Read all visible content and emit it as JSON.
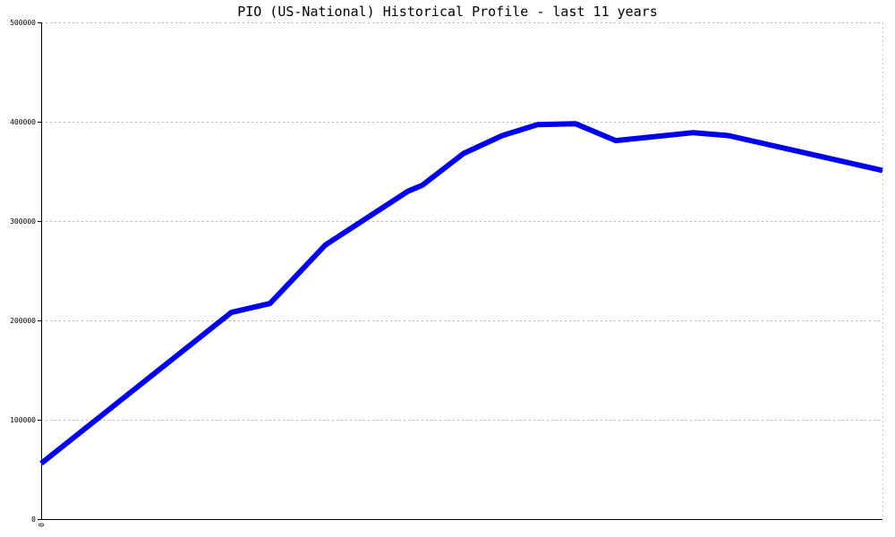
{
  "chart_data": {
    "type": "line",
    "title": "PIO (US-National) Historical Profile - last 11 years",
    "xlabel": "",
    "ylabel": "",
    "ylim": [
      0,
      500000
    ],
    "yticks": [
      0,
      100000,
      200000,
      300000,
      400000,
      500000
    ],
    "ytick_labels": [
      "0",
      "100000",
      "200000",
      "300000",
      "400000",
      "500000"
    ],
    "xtick_labels": [
      "0"
    ],
    "x_range": [
      0,
      1
    ],
    "grid": true,
    "grid_style": "dotted horizontal",
    "legend": "none",
    "line_color": "#0000ee",
    "series": [
      {
        "values": [
          {
            "x": 0.0,
            "y": 56000
          },
          {
            "x": 0.226,
            "y": 208000
          },
          {
            "x": 0.272,
            "y": 217000
          },
          {
            "x": 0.338,
            "y": 276000
          },
          {
            "x": 0.436,
            "y": 330000
          },
          {
            "x": 0.453,
            "y": 336000
          },
          {
            "x": 0.502,
            "y": 368000
          },
          {
            "x": 0.548,
            "y": 386000
          },
          {
            "x": 0.59,
            "y": 397000
          },
          {
            "x": 0.635,
            "y": 398000
          },
          {
            "x": 0.683,
            "y": 381000
          },
          {
            "x": 0.775,
            "y": 389000
          },
          {
            "x": 0.817,
            "y": 386000
          },
          {
            "x": 1.0,
            "y": 351000
          }
        ]
      }
    ]
  }
}
